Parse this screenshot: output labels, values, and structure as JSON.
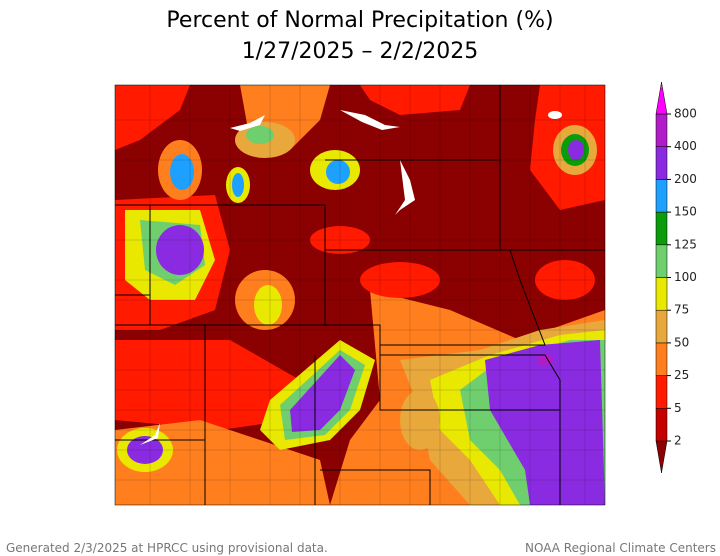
{
  "title": "Percent of Normal Precipitation (%)",
  "subtitle": "1/27/2025 – 2/2/2025",
  "legend": {
    "levels": [
      2,
      5,
      25,
      50,
      75,
      100,
      125,
      150,
      200,
      400,
      800
    ],
    "colors": [
      "#8b0000",
      "#c40000",
      "#ff1a00",
      "#ff7f1e",
      "#e8a83c",
      "#e8e800",
      "#6fcf6f",
      "#0a9c0a",
      "#1ea0ff",
      "#8a2be2",
      "#b21cc8",
      "#ff00ff"
    ]
  },
  "footer": {
    "left": "Generated 2/3/2025 at HPRCC using provisional data.",
    "right": "NOAA Regional Climate Centers"
  }
}
